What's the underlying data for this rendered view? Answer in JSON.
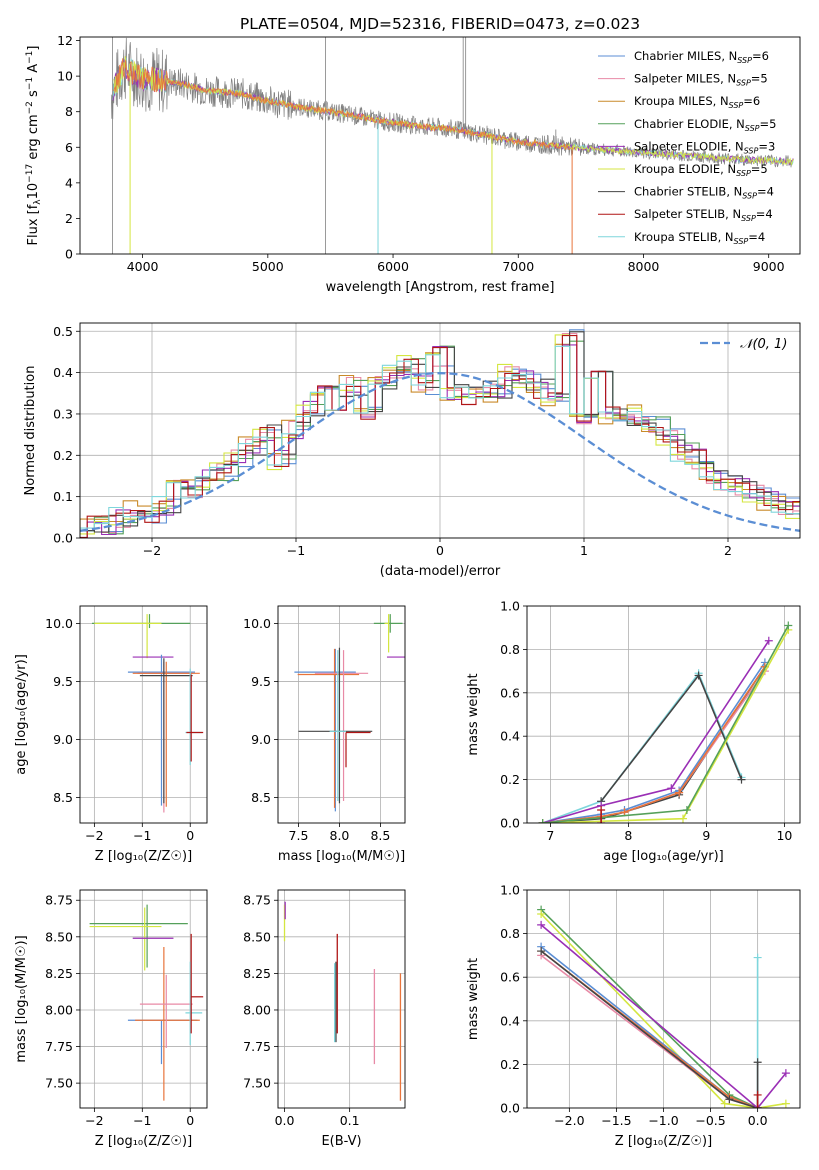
{
  "colors": {
    "chabrier_miles": "#5b8ed4",
    "salpeter_miles": "#e88aa6",
    "kroupa_miles": "#c98a2a",
    "chabrier_elodie": "#55a05a",
    "salpeter_elodie": "#9a2fb5",
    "kroupa_elodie": "#d4e640",
    "chabrier_stelib": "#444444",
    "salpeter_stelib": "#b01515",
    "kroupa_stelib": "#7ed6dc",
    "orange_fit": "#e8743b",
    "gaussian": "#5b8ed4",
    "spectrum": "#808080"
  },
  "chart_data": [
    {
      "id": "spectrum",
      "type": "line",
      "title": "PLATE=0504, MJD=52316, FIBERID=0473, z=0.023",
      "xlabel": "wavelength [Angstrom, rest frame]",
      "ylabel_parts": [
        "Flux [f",
        "λ",
        "10",
        "−17",
        " erg cm",
        "−2",
        " s",
        "−1",
        " A",
        "−1",
        "]"
      ],
      "xlim": [
        3500,
        9250
      ],
      "ylim": [
        0,
        12.2
      ],
      "xticks": [
        "4000",
        "5000",
        "6000",
        "7000",
        "8000",
        "9000"
      ],
      "yticks": [
        "0",
        "2",
        "4",
        "6",
        "8",
        "10",
        "12"
      ],
      "legend_position": "top-right",
      "legend": [
        {
          "text": "Chabrier MILES, N",
          "sub": "SSP",
          "val": "=6"
        },
        {
          "text": "Salpeter MILES, N",
          "sub": "SSP",
          "val": "=5"
        },
        {
          "text": "Kroupa MILES, N",
          "sub": "SSP",
          "val": "=6"
        },
        {
          "text": "Chabrier ELODIE, N",
          "sub": "SSP",
          "val": "=5"
        },
        {
          "text": "Salpeter ELODIE, N",
          "sub": "SSP",
          "val": "=3"
        },
        {
          "text": "Kroupa ELODIE, N",
          "sub": "SSP",
          "val": "=5"
        },
        {
          "text": "Chabrier STELIB, N",
          "sub": "SSP",
          "val": "=4"
        },
        {
          "text": "Salpeter STELIB, N",
          "sub": "SSP",
          "val": "=4"
        },
        {
          "text": "Kroupa STELIB, N",
          "sub": "SSP",
          "val": "=4"
        }
      ],
      "continuum": {
        "x": [
          3750,
          3850,
          4000,
          4300,
          4500,
          4800,
          5000,
          5300,
          5600,
          5900,
          6200,
          6500,
          6800,
          7000,
          7300,
          7600,
          8000,
          8400,
          8800,
          9200
        ],
        "y": [
          9.0,
          10.5,
          9.9,
          9.6,
          9.2,
          9.0,
          8.6,
          8.2,
          7.9,
          7.5,
          7.2,
          7.0,
          6.6,
          6.3,
          6.1,
          5.9,
          5.7,
          5.5,
          5.3,
          5.2
        ]
      }
    },
    {
      "id": "residuals",
      "type": "line",
      "xlabel": "(data-model)/error",
      "ylabel": "Normed distribution",
      "xlim": [
        -2.5,
        2.5
      ],
      "ylim": [
        0,
        0.52
      ],
      "xticks": [
        "−2",
        "−1",
        "0",
        "1",
        "2"
      ],
      "yticks": [
        "0.0",
        "0.1",
        "0.2",
        "0.3",
        "0.4",
        "0.5"
      ],
      "legend_position": "top-right",
      "legend": [
        {
          "label": "𝒩(0, 1)"
        }
      ],
      "gaussian": {
        "mu": 0,
        "sigma": 1
      },
      "bin_width": 0.1,
      "series": [
        {
          "color_key": "chabrier_miles",
          "x0": -2.5,
          "values": [
            0.02,
            0.03,
            0.03,
            0.05,
            0.07,
            0.06,
            0.08,
            0.12,
            0.12,
            0.14,
            0.16,
            0.19,
            0.22,
            0.25,
            0.19,
            0.26,
            0.31,
            0.35,
            0.33,
            0.37,
            0.3,
            0.38,
            0.4,
            0.42,
            0.37,
            0.44,
            0.35,
            0.34,
            0.36,
            0.35,
            0.4,
            0.38,
            0.36,
            0.33,
            0.48,
            0.3,
            0.38,
            0.3,
            0.29,
            0.3,
            0.27,
            0.24,
            0.21,
            0.19,
            0.15,
            0.13,
            0.12,
            0.11,
            0.09,
            0.08,
            0.07,
            0.06,
            0.05,
            0.05,
            0.05,
            0.04,
            0.03,
            0.03,
            0.03,
            0.02,
            0.02,
            0.02,
            0.02,
            0.02,
            0.02,
            0.02,
            0.02,
            0.02,
            0.02,
            0.03,
            0.03,
            0.03
          ]
        }
      ]
    },
    {
      "id": "z-vs-age",
      "type": "scatter",
      "xlabel": "Z [log₁₀(Z/Z☉)]",
      "ylabel": "age  [log₁₀(age/yr)]",
      "xlim": [
        -2.3,
        0.35
      ],
      "ylim": [
        8.28,
        10.15
      ],
      "xticks": [
        "−2",
        "−1",
        "0"
      ],
      "yticks": [
        "8.5",
        "9.0",
        "9.5",
        "10.0"
      ]
    },
    {
      "id": "mass-vs-age",
      "type": "scatter",
      "xlabel": "mass [log₁₀(M/M☉)]",
      "xlim": [
        7.25,
        8.8
      ],
      "ylim": [
        8.28,
        10.15
      ],
      "xticks": [
        "7.5",
        "8.0",
        "8.5"
      ],
      "yticks": [
        "8.5",
        "9.0",
        "9.5",
        "10.0"
      ]
    },
    {
      "id": "age-vs-weight",
      "type": "line",
      "xlabel": "age  [log₁₀(age/yr)]",
      "ylabel": "mass weight",
      "xlim": [
        6.7,
        10.2
      ],
      "ylim": [
        0,
        1.0
      ],
      "xticks": [
        "7",
        "8",
        "9",
        "10"
      ],
      "yticks": [
        "0.0",
        "0.2",
        "0.4",
        "0.6",
        "0.8",
        "1.0"
      ],
      "series": [
        {
          "color_key": "chabrier_stelib",
          "x": [
            6.9,
            7.65,
            7.95,
            8.65,
            9.75
          ],
          "y": [
            0.0,
            0.02,
            0.05,
            0.13,
            0.72
          ]
        },
        {
          "color_key": "chabrier_miles",
          "x": [
            6.9,
            7.65,
            7.95,
            8.65,
            9.75
          ],
          "y": [
            0.0,
            0.04,
            0.06,
            0.15,
            0.74
          ]
        },
        {
          "color_key": "salpeter_miles",
          "x": [
            6.9,
            7.65,
            7.95,
            8.65,
            9.75
          ],
          "y": [
            0.0,
            0.03,
            0.05,
            0.14,
            0.7
          ]
        },
        {
          "color_key": "orange_fit",
          "x": [
            6.9,
            7.65,
            7.95,
            8.65,
            9.75
          ],
          "y": [
            0.0,
            0.03,
            0.05,
            0.14,
            0.72
          ]
        },
        {
          "color_key": "kroupa_stelib",
          "x": [
            6.9,
            7.65,
            8.9,
            9.45
          ],
          "y": [
            0.0,
            0.1,
            0.69,
            0.21
          ]
        },
        {
          "color_key": "chabrier_stelib",
          "x": [
            7.65,
            8.9,
            9.45
          ],
          "y": [
            0.1,
            0.68,
            0.2
          ]
        },
        {
          "color_key": "salpeter_elodie",
          "x": [
            6.9,
            7.65,
            8.55,
            9.8
          ],
          "y": [
            0.0,
            0.08,
            0.16,
            0.84
          ]
        },
        {
          "color_key": "kroupa_elodie",
          "x": [
            6.9,
            8.7,
            10.05
          ],
          "y": [
            0.0,
            0.02,
            0.89
          ]
        },
        {
          "color_key": "chabrier_elodie",
          "x": [
            6.9,
            8.75,
            10.05
          ],
          "y": [
            0.0,
            0.06,
            0.91
          ]
        },
        {
          "color_key": "salpeter_stelib",
          "x": [
            7.65,
            7.65
          ],
          "y": [
            0.0,
            0.06
          ]
        }
      ]
    },
    {
      "id": "z-vs-mass",
      "type": "scatter",
      "xlabel": "Z [log₁₀(Z/Z☉)]",
      "ylabel": "mass [log₁₀(M/M☉)]",
      "xlim": [
        -2.3,
        0.35
      ],
      "ylim": [
        7.33,
        8.82
      ],
      "xticks": [
        "−2",
        "−1",
        "0"
      ],
      "yticks": [
        "7.50",
        "7.75",
        "8.00",
        "8.25",
        "8.50",
        "8.75"
      ]
    },
    {
      "id": "ebv-vs-mass",
      "type": "scatter",
      "xlabel": "E(B-V)",
      "xlim": [
        -0.01,
        0.185
      ],
      "ylim": [
        7.33,
        8.82
      ],
      "xticks": [
        "0.0",
        "0.1"
      ],
      "yticks": [
        "7.50",
        "7.75",
        "8.00",
        "8.25",
        "8.50",
        "8.75"
      ]
    },
    {
      "id": "z-vs-weight",
      "type": "line",
      "xlabel": "Z [log₁₀(Z/Z☉)]",
      "ylabel": "mass weight",
      "xlim": [
        -2.45,
        0.45
      ],
      "ylim": [
        0,
        1.0
      ],
      "xticks": [
        "−2.0",
        "−1.5",
        "−1.0",
        "−0.5",
        "0.0"
      ],
      "yticks": [
        "0.0",
        "0.2",
        "0.4",
        "0.6",
        "0.8",
        "1.0"
      ]
    }
  ]
}
